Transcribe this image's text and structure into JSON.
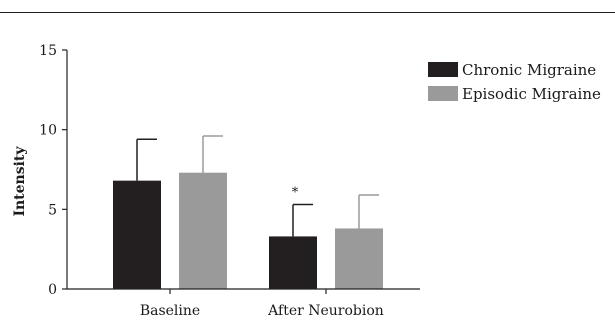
{
  "chart_data": {
    "type": "bar",
    "categories": [
      "Baseline",
      "After Neurobion"
    ],
    "series": [
      {
        "name": "Chronic Migraine",
        "values": [
          6.8,
          3.3
        ],
        "errors": [
          2.6,
          2.0
        ],
        "color": "#231f20"
      },
      {
        "name": "Episodic Migraine",
        "values": [
          7.3,
          3.8
        ],
        "errors": [
          2.3,
          2.1
        ],
        "color": "#9a9a9a"
      }
    ],
    "ylabel": "Intensity",
    "xlabel": "",
    "ylim": [
      0,
      15
    ],
    "yticks": [
      "0",
      "5",
      "10",
      "15"
    ],
    "annotations": [
      {
        "text": "*",
        "category": "After Neurobion",
        "series": "Chronic Migraine"
      }
    ],
    "grid": false,
    "legend_position": "top-right"
  }
}
